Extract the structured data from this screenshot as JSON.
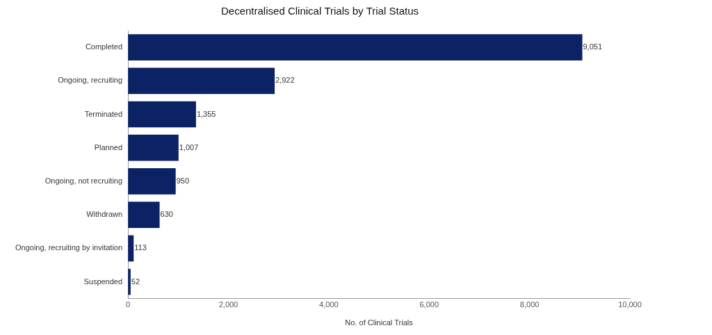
{
  "chart_data": {
    "type": "bar",
    "title": "Decentralised Clinical Trials by Trial Status",
    "x_label": "No. of Clinical Trials",
    "orientation": "horizontal",
    "categories": [
      "Completed",
      "Ongoing, recruiting",
      "Terminated",
      "Planned",
      "Ongoing, not recruiting",
      "Withdrawn",
      "Ongoing, recruiting by invitation",
      "Suspended"
    ],
    "values": [
      9051,
      2922,
      1355,
      1007,
      950,
      630,
      113,
      52
    ],
    "value_labels": [
      "9,051",
      "2,922",
      "1,355",
      "1,007",
      "950",
      "630",
      "113",
      "52"
    ],
    "color": "#0b2265",
    "xlim": [
      0,
      10000
    ],
    "xticks": [
      0,
      {
        "value": 2000,
        "label": "2,000"
      },
      {
        "value": 4000,
        "label": "4,000"
      },
      {
        "value": 6000,
        "label": "6,000"
      },
      {
        "value": 8000,
        "label": "8,000"
      },
      {
        "value": 10000,
        "label": "10,000"
      }
    ],
    "grid": false,
    "data_labels": true
  }
}
